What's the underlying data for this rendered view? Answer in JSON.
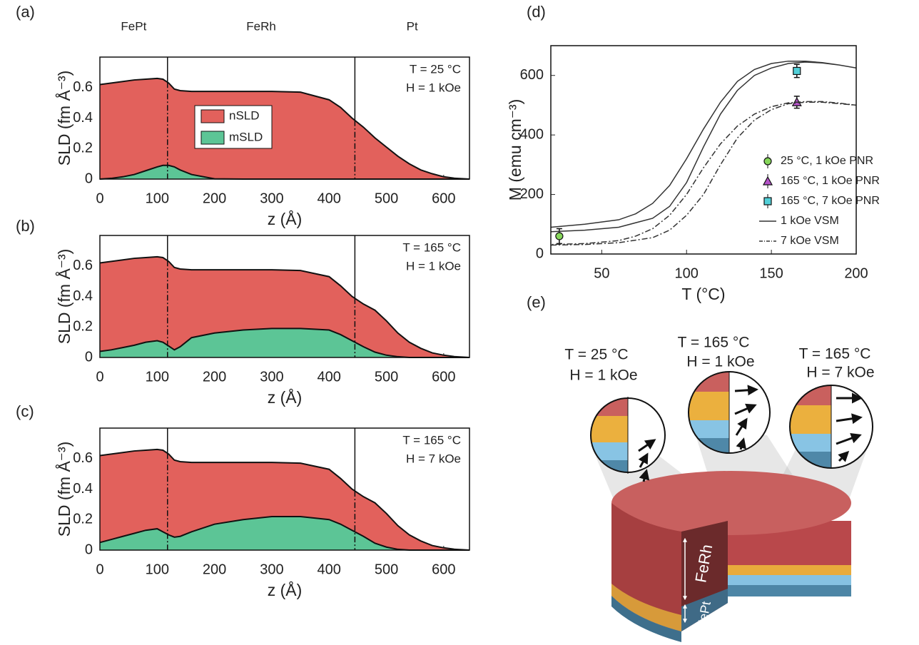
{
  "chart_data": [
    {
      "type": "area",
      "label": "(a)",
      "region_labels": [
        "FePt",
        "FeRh",
        "Pt"
      ],
      "annotations": [
        "T = 25 °C",
        "H = 1 kOe"
      ],
      "x_label": "z (Å)",
      "y_label": "SLD (fm Å⁻³)",
      "xlim": [
        0,
        645
      ],
      "ylim": [
        0,
        0.8
      ],
      "xticks": [
        0,
        100,
        200,
        300,
        400,
        500,
        600
      ],
      "yticks": [
        0,
        0.2,
        0.4,
        0.6
      ],
      "interfaces": [
        118,
        445
      ],
      "legend": true,
      "x": [
        0,
        20,
        40,
        60,
        80,
        100,
        110,
        120,
        130,
        140,
        160,
        200,
        250,
        300,
        350,
        400,
        420,
        440,
        460,
        480,
        500,
        520,
        540,
        560,
        580,
        600,
        620,
        645
      ],
      "series": [
        {
          "name": "nSLD",
          "color": "#e2615c",
          "values": [
            0.62,
            0.63,
            0.64,
            0.65,
            0.655,
            0.66,
            0.655,
            0.63,
            0.59,
            0.58,
            0.575,
            0.575,
            0.575,
            0.575,
            0.57,
            0.52,
            0.47,
            0.4,
            0.34,
            0.27,
            0.21,
            0.15,
            0.1,
            0.06,
            0.035,
            0.015,
            0.005,
            0
          ]
        },
        {
          "name": "mSLD",
          "color": "#5cc596",
          "values": [
            0,
            0.005,
            0.015,
            0.03,
            0.055,
            0.08,
            0.09,
            0.09,
            0.08,
            0.06,
            0.03,
            0.002,
            0,
            0,
            0,
            0,
            0,
            0,
            0,
            0,
            0,
            0,
            0,
            0,
            0,
            0,
            0,
            0
          ]
        }
      ]
    },
    {
      "type": "area",
      "label": "(b)",
      "annotations": [
        "T = 165 °C",
        "H = 1 kOe"
      ],
      "x_label": "z (Å)",
      "y_label": "SLD (fm Å⁻³)",
      "xlim": [
        0,
        645
      ],
      "ylim": [
        0,
        0.8
      ],
      "xticks": [
        0,
        100,
        200,
        300,
        400,
        500,
        600
      ],
      "yticks": [
        0,
        0.2,
        0.4,
        0.6
      ],
      "interfaces": [
        118,
        445
      ],
      "legend": false,
      "x": [
        0,
        20,
        40,
        60,
        80,
        100,
        110,
        120,
        130,
        140,
        160,
        200,
        250,
        300,
        350,
        400,
        420,
        440,
        460,
        480,
        500,
        520,
        540,
        560,
        580,
        600,
        620,
        645
      ],
      "series": [
        {
          "color": "#e2615c",
          "values": [
            0.62,
            0.63,
            0.64,
            0.65,
            0.655,
            0.66,
            0.655,
            0.63,
            0.59,
            0.58,
            0.575,
            0.575,
            0.575,
            0.575,
            0.57,
            0.53,
            0.47,
            0.4,
            0.35,
            0.31,
            0.24,
            0.16,
            0.1,
            0.06,
            0.03,
            0.015,
            0.005,
            0
          ]
        },
        {
          "color": "#5cc596",
          "values": [
            0.04,
            0.05,
            0.065,
            0.08,
            0.1,
            0.11,
            0.1,
            0.075,
            0.05,
            0.07,
            0.13,
            0.16,
            0.18,
            0.19,
            0.19,
            0.18,
            0.15,
            0.11,
            0.07,
            0.035,
            0.015,
            0.005,
            0,
            0,
            0,
            0,
            0,
            0
          ]
        }
      ]
    },
    {
      "type": "area",
      "label": "(c)",
      "annotations": [
        "T = 165 °C",
        "H = 7 kOe"
      ],
      "x_label": "z (Å)",
      "y_label": "SLD (fm Å⁻³)",
      "xlim": [
        0,
        645
      ],
      "ylim": [
        0,
        0.8
      ],
      "xticks": [
        0,
        100,
        200,
        300,
        400,
        500,
        600
      ],
      "yticks": [
        0,
        0.2,
        0.4,
        0.6
      ],
      "interfaces": [
        118,
        445
      ],
      "legend": false,
      "x": [
        0,
        20,
        40,
        60,
        80,
        100,
        110,
        120,
        130,
        140,
        160,
        200,
        250,
        300,
        350,
        400,
        420,
        440,
        460,
        480,
        500,
        520,
        540,
        560,
        580,
        600,
        620,
        645
      ],
      "series": [
        {
          "color": "#e2615c",
          "values": [
            0.62,
            0.63,
            0.64,
            0.65,
            0.655,
            0.66,
            0.655,
            0.63,
            0.59,
            0.58,
            0.575,
            0.575,
            0.575,
            0.575,
            0.57,
            0.53,
            0.47,
            0.4,
            0.35,
            0.31,
            0.24,
            0.16,
            0.1,
            0.06,
            0.03,
            0.015,
            0.005,
            0
          ]
        },
        {
          "color": "#5cc596",
          "values": [
            0.05,
            0.07,
            0.09,
            0.11,
            0.13,
            0.14,
            0.12,
            0.1,
            0.085,
            0.09,
            0.12,
            0.17,
            0.2,
            0.22,
            0.22,
            0.2,
            0.17,
            0.13,
            0.09,
            0.045,
            0.02,
            0.005,
            0,
            0,
            0,
            0,
            0,
            0
          ]
        }
      ]
    },
    {
      "type": "line",
      "label": "(d)",
      "x_label": "T (°C)",
      "y_label": "M (emu cm⁻³)",
      "xlim": [
        20,
        200
      ],
      "ylim": [
        0,
        700
      ],
      "xticks": [
        50,
        100,
        150,
        200
      ],
      "yticks": [
        0,
        200,
        400,
        600
      ],
      "legend_position": "lower right",
      "series": [
        {
          "name": "25 °C, 1 kOe PNR",
          "mode": "scatter",
          "marker": "circle",
          "color": "#86d65a",
          "x": [
            25
          ],
          "values": [
            60
          ],
          "errors": [
            25
          ]
        },
        {
          "name": "165 °C, 1 kOe PNR",
          "mode": "scatter",
          "marker": "triangle",
          "color": "#b453c8",
          "x": [
            165
          ],
          "values": [
            510
          ],
          "errors": [
            20
          ]
        },
        {
          "name": "165 °C, 7 kOe PNR",
          "mode": "scatter",
          "marker": "square",
          "color": "#52d0d8",
          "x": [
            165
          ],
          "values": [
            615
          ],
          "errors": [
            22
          ]
        },
        {
          "name": "1 kOe VSM",
          "mode": "line",
          "style": "solid",
          "color": "#333333",
          "x": [
            20,
            40,
            60,
            80,
            90,
            100,
            110,
            120,
            130,
            140,
            150,
            160,
            170,
            180,
            190,
            200,
            190,
            180,
            170,
            160,
            150,
            140,
            130,
            120,
            110,
            100,
            90,
            80,
            70,
            60,
            40,
            20
          ],
          "values": [
            75,
            80,
            90,
            120,
            160,
            240,
            360,
            470,
            550,
            600,
            625,
            640,
            645,
            642,
            635,
            625,
            635,
            643,
            648,
            648,
            640,
            620,
            580,
            510,
            420,
            320,
            230,
            170,
            135,
            115,
            100,
            90
          ]
        },
        {
          "name": "7 kOe VSM",
          "mode": "line",
          "style": "dashdot",
          "color": "#333333",
          "x": [
            20,
            40,
            60,
            80,
            90,
            100,
            110,
            120,
            130,
            140,
            150,
            160,
            170,
            180,
            190,
            200,
            190,
            180,
            170,
            160,
            150,
            140,
            130,
            120,
            110,
            100,
            90,
            80,
            70,
            60,
            40,
            20
          ],
          "values": [
            30,
            32,
            38,
            55,
            80,
            130,
            200,
            300,
            390,
            450,
            485,
            505,
            510,
            510,
            505,
            500,
            507,
            512,
            512,
            508,
            495,
            470,
            430,
            370,
            290,
            200,
            130,
            85,
            60,
            45,
            35,
            32
          ]
        }
      ]
    }
  ],
  "diagram": {
    "label": "(e)",
    "insets": [
      {
        "lines": [
          "T = 25 °C",
          "H = 1 kOe"
        ]
      },
      {
        "lines": [
          "T = 165 °C",
          "H = 1 kOe"
        ]
      },
      {
        "lines": [
          "T = 165 °C",
          "H = 7 kOe"
        ]
      }
    ],
    "layers": [
      "FeRh",
      "FePt"
    ]
  }
}
